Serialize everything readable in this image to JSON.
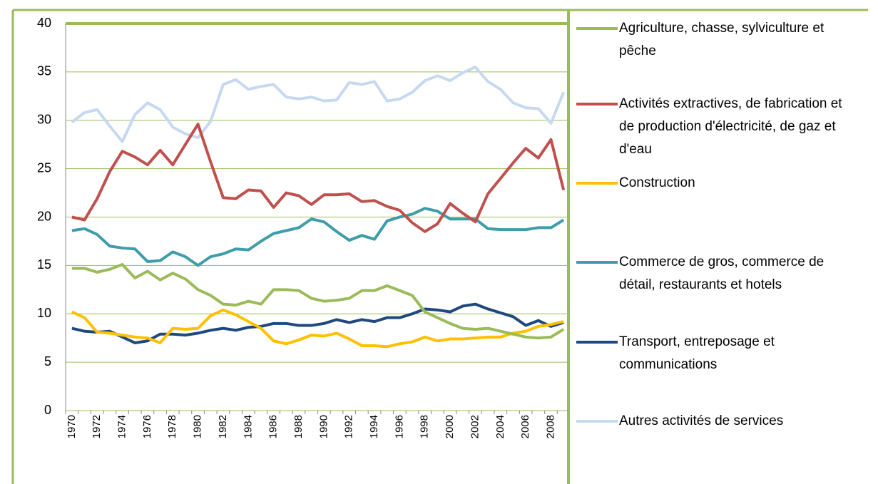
{
  "chart_data": {
    "type": "line",
    "categories": [
      "1970",
      null,
      "1972",
      null,
      "1974",
      null,
      "1976",
      null,
      "1978",
      null,
      "1980",
      null,
      "1982",
      null,
      "1984",
      null,
      "1986",
      null,
      "1988",
      null,
      "1990",
      null,
      "1992",
      null,
      "1994",
      null,
      "1996",
      null,
      "1998",
      null,
      "2000",
      null,
      "2002",
      null,
      "2004",
      null,
      "2006",
      null,
      "2008",
      null
    ],
    "ylim": [
      0,
      40
    ],
    "yticks": [
      0,
      5,
      10,
      15,
      20,
      25,
      30,
      35,
      40
    ],
    "grid": true,
    "legend": "right",
    "series": [
      {
        "name": "Agriculture, chasse, sylviculture et pêche",
        "color": "#9bbb59",
        "values": [
          14.7,
          14.7,
          14.3,
          14.6,
          15.1,
          13.7,
          14.4,
          13.5,
          14.2,
          13.6,
          12.5,
          11.9,
          11.0,
          10.9,
          11.3,
          11.0,
          12.5,
          12.5,
          12.4,
          11.6,
          11.3,
          11.4,
          11.6,
          12.4,
          12.4,
          12.9,
          12.4,
          11.9,
          10.2,
          9.6,
          9.0,
          8.5,
          8.4,
          8.5,
          8.2,
          7.9,
          7.6,
          7.5,
          7.6,
          8.4
        ]
      },
      {
        "name": "Activités extractives, de fabrication et de production d'électricité, de gaz et d'eau",
        "color": "#c0504d",
        "values": [
          20.0,
          19.7,
          21.9,
          24.7,
          26.8,
          26.2,
          25.4,
          26.9,
          25.4,
          27.5,
          29.6,
          25.7,
          22.0,
          21.9,
          22.8,
          22.7,
          21.0,
          22.5,
          22.2,
          21.3,
          22.3,
          22.3,
          22.4,
          21.6,
          21.7,
          21.1,
          20.7,
          19.4,
          18.5,
          19.3,
          21.4,
          20.4,
          19.5,
          22.4,
          24.0,
          25.6,
          27.1,
          26.1,
          28.0,
          22.8
        ]
      },
      {
        "name": "Construction",
        "color": "#ffc000",
        "values": [
          10.2,
          9.6,
          8.1,
          8.0,
          7.8,
          7.6,
          7.5,
          7.0,
          8.5,
          8.4,
          8.5,
          9.8,
          10.4,
          9.9,
          9.2,
          8.5,
          7.2,
          6.9,
          7.3,
          7.8,
          7.7,
          8.0,
          7.4,
          6.7,
          6.7,
          6.6,
          6.9,
          7.1,
          7.6,
          7.2,
          7.4,
          7.4,
          7.5,
          7.6,
          7.6,
          8.0,
          8.2,
          8.7,
          8.9,
          9.2
        ]
      },
      {
        "name": "Commerce de gros, commerce de détail, restaurants et hotels",
        "color": "#3f9caa",
        "values": [
          18.6,
          18.8,
          18.2,
          17.0,
          16.8,
          16.7,
          15.4,
          15.5,
          16.4,
          15.9,
          15.0,
          15.9,
          16.2,
          16.7,
          16.6,
          17.5,
          18.3,
          18.6,
          18.9,
          19.8,
          19.5,
          18.5,
          17.6,
          18.1,
          17.7,
          19.6,
          20.0,
          20.3,
          20.9,
          20.6,
          19.8,
          19.8,
          19.8,
          18.8,
          18.7,
          18.7,
          18.7,
          18.9,
          18.9,
          19.7
        ]
      },
      {
        "name": "Transport, entreposage et communications",
        "color": "#1f497d",
        "values": [
          8.5,
          8.2,
          8.1,
          8.2,
          7.6,
          7.0,
          7.2,
          7.9,
          7.9,
          7.8,
          8.0,
          8.3,
          8.5,
          8.3,
          8.6,
          8.7,
          9.0,
          9.0,
          8.8,
          8.8,
          9.0,
          9.4,
          9.1,
          9.4,
          9.2,
          9.6,
          9.6,
          10.0,
          10.5,
          10.4,
          10.2,
          10.8,
          11.0,
          10.5,
          10.1,
          9.7,
          8.8,
          9.3,
          8.7,
          9.1
        ]
      },
      {
        "name": "Autres activités de services",
        "color": "#c6d9f1",
        "values": [
          29.8,
          30.8,
          31.1,
          29.4,
          27.8,
          30.6,
          31.8,
          31.1,
          29.3,
          28.6,
          28.2,
          29.9,
          33.7,
          34.2,
          33.2,
          33.5,
          33.7,
          32.4,
          32.2,
          32.4,
          32.0,
          32.1,
          33.9,
          33.7,
          34.0,
          32.0,
          32.2,
          32.9,
          34.1,
          34.6,
          34.1,
          34.9,
          35.5,
          34.0,
          33.2,
          31.8,
          31.3,
          31.2,
          29.7,
          32.9
        ]
      }
    ]
  }
}
